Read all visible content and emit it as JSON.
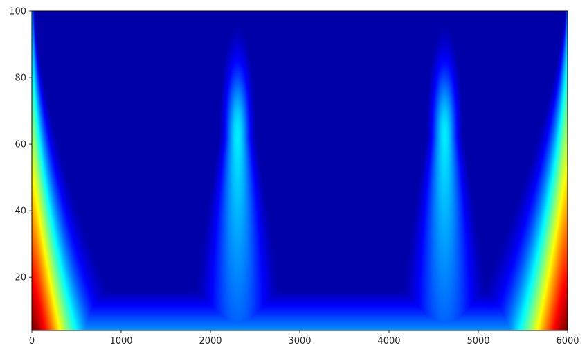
{
  "chart_data": {
    "type": "heatmap",
    "title": "",
    "xlabel": "",
    "ylabel": "",
    "xlim": [
      0,
      6000
    ],
    "ylim": [
      4,
      100
    ],
    "xticks": [
      0,
      1000,
      2000,
      3000,
      4000,
      5000,
      6000
    ],
    "yticks": [
      20,
      40,
      60,
      80,
      100
    ],
    "x_tick_labels": [
      "0",
      "1000",
      "2000",
      "3000",
      "4000",
      "5000",
      "6000"
    ],
    "y_tick_labels": [
      "20",
      "40",
      "60",
      "80",
      "100"
    ],
    "colormap": "jet",
    "value_range": [
      0,
      1
    ],
    "grid": false,
    "legend": "none",
    "features": [
      {
        "kind": "edge",
        "side": "left",
        "x0": 0,
        "peak": 1.0,
        "width_at_base": 500,
        "width_at_top": 20
      },
      {
        "kind": "edge",
        "side": "right",
        "x0": 6000,
        "peak": 1.0,
        "width_at_base": 550,
        "width_at_top": 20
      },
      {
        "kind": "plume",
        "x_center": 2300,
        "y_peak": 62,
        "y_top": 88,
        "peak": 0.36
      },
      {
        "kind": "plume",
        "x_center": 4620,
        "y_peak": 62,
        "y_top": 88,
        "peak": 0.36
      },
      {
        "kind": "base_band",
        "y_range": [
          4,
          12
        ],
        "x_range": [
          0,
          6000
        ],
        "peak": 0.3
      }
    ]
  }
}
